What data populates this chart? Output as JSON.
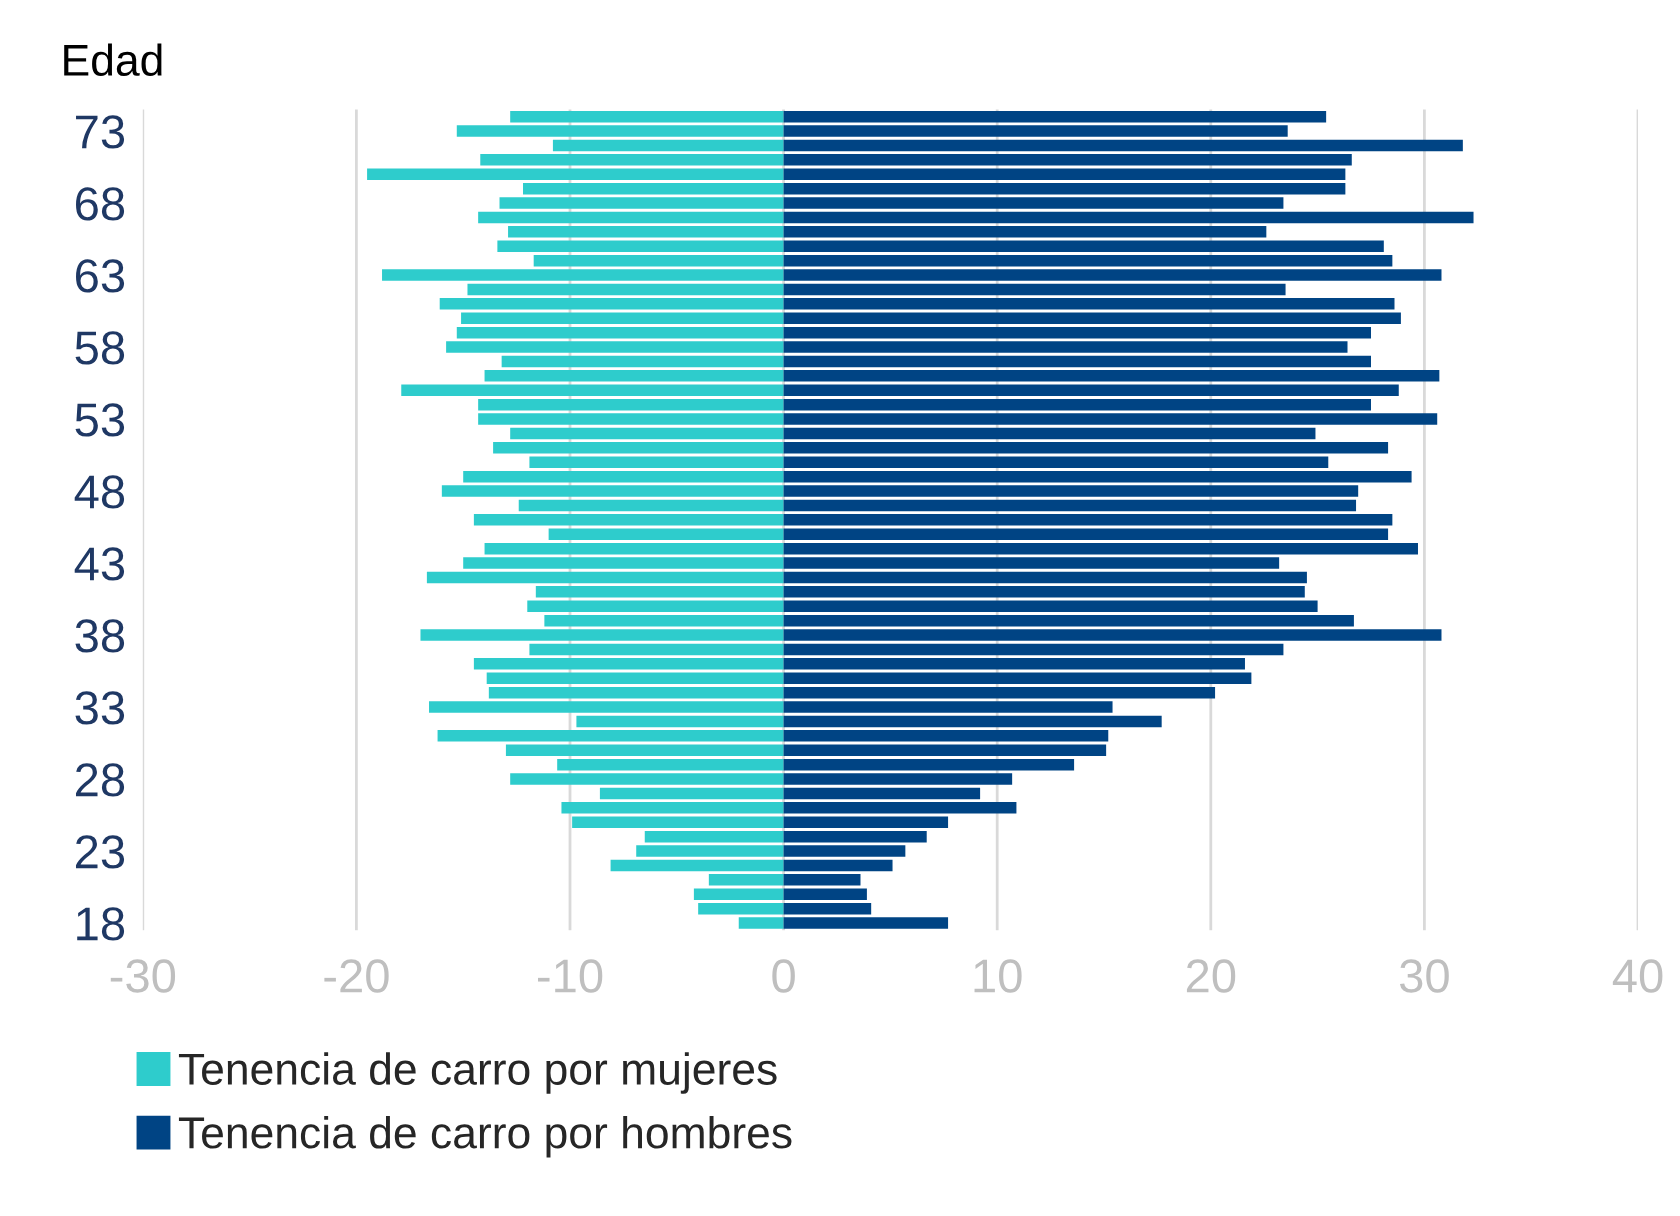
{
  "chart_data": {
    "type": "bar",
    "orientation": "horizontal",
    "ylabel": "Edad",
    "categories": [
      null,
      "73",
      null,
      null,
      null,
      null,
      "68",
      null,
      null,
      null,
      null,
      "63",
      null,
      null,
      null,
      null,
      "58",
      null,
      null,
      null,
      null,
      "53",
      null,
      null,
      null,
      null,
      "48",
      null,
      null,
      null,
      null,
      "43",
      null,
      null,
      null,
      null,
      "38",
      null,
      null,
      null,
      null,
      "33",
      null,
      null,
      null,
      null,
      "28",
      null,
      null,
      null,
      null,
      "23",
      null,
      null,
      null,
      null,
      "18"
    ],
    "series": [
      {
        "name": "Tenencia de carro por mujeres",
        "color": "#2ecccc",
        "values": [
          -12.8,
          -15.3,
          -10.8,
          -14.2,
          -19.5,
          -12.2,
          -13.3,
          -14.3,
          -12.9,
          -13.4,
          -11.7,
          -18.8,
          -14.8,
          -16.1,
          -15.1,
          -15.3,
          -15.8,
          -13.2,
          -14.0,
          -17.9,
          -14.3,
          -14.3,
          -12.8,
          -13.6,
          -11.9,
          -15.0,
          -16.0,
          -12.4,
          -14.5,
          -11.0,
          -14.0,
          -15.0,
          -16.7,
          -11.6,
          -12.0,
          -11.2,
          -17.0,
          -11.9,
          -14.5,
          -13.9,
          -13.8,
          -16.6,
          -9.7,
          -16.2,
          -13.0,
          -10.6,
          -12.8,
          -8.6,
          -10.4,
          -9.9,
          -6.5,
          -6.9,
          -8.1,
          -3.5,
          -4.2,
          -4.0,
          -2.1
        ]
      },
      {
        "name": "Tenencia de carro por hombres",
        "color": "#004484",
        "values": [
          25.4,
          23.6,
          31.8,
          26.6,
          26.3,
          26.3,
          23.4,
          32.3,
          22.6,
          28.1,
          28.5,
          30.8,
          23.5,
          28.6,
          28.9,
          27.5,
          26.4,
          27.5,
          30.7,
          28.8,
          27.5,
          30.6,
          24.9,
          28.3,
          25.5,
          29.4,
          26.9,
          26.8,
          28.5,
          28.3,
          29.7,
          23.2,
          24.5,
          24.4,
          25.0,
          26.7,
          30.8,
          23.4,
          21.6,
          21.9,
          20.2,
          15.4,
          17.7,
          15.2,
          15.1,
          13.6,
          10.7,
          9.2,
          10.9,
          7.7,
          6.7,
          5.7,
          5.1,
          3.6,
          3.9,
          4.1,
          7.7
        ]
      }
    ],
    "xlim": [
      -30,
      40
    ],
    "xticks": [
      -30,
      -20,
      -10,
      0,
      10,
      20,
      30,
      40
    ],
    "grid": "x",
    "legend": "bottom left",
    "stacked": true
  }
}
